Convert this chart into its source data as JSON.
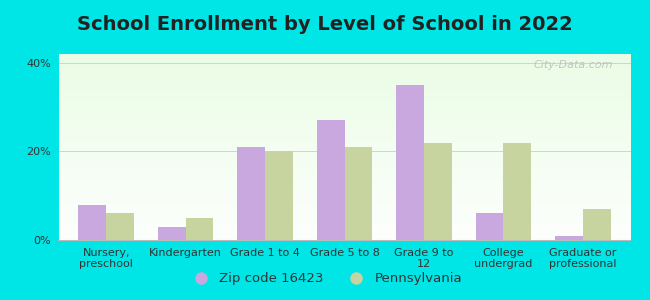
{
  "title": "School Enrollment by Level of School in 2022",
  "categories": [
    "Nursery,\npreschool",
    "Kindergarten",
    "Grade 1 to 4",
    "Grade 5 to 8",
    "Grade 9 to\n12",
    "College\nundergrad",
    "Graduate or\nprofessional"
  ],
  "zip_values": [
    8,
    3,
    21,
    27,
    35,
    6,
    1
  ],
  "pa_values": [
    6,
    5,
    20,
    21,
    22,
    22,
    7
  ],
  "zip_color": "#c9a8e0",
  "pa_color": "#c8d4a0",
  "bar_width": 0.35,
  "ylim": [
    0,
    42
  ],
  "yticks": [
    0,
    20,
    40
  ],
  "ytick_labels": [
    "0%",
    "20%",
    "40%"
  ],
  "legend_zip": "Zip code 16423",
  "legend_pa": "Pennsylvania",
  "bg_color": "#00e5e5",
  "title_fontsize": 14,
  "tick_fontsize": 8,
  "legend_fontsize": 9.5,
  "watermark": "City-Data.com"
}
